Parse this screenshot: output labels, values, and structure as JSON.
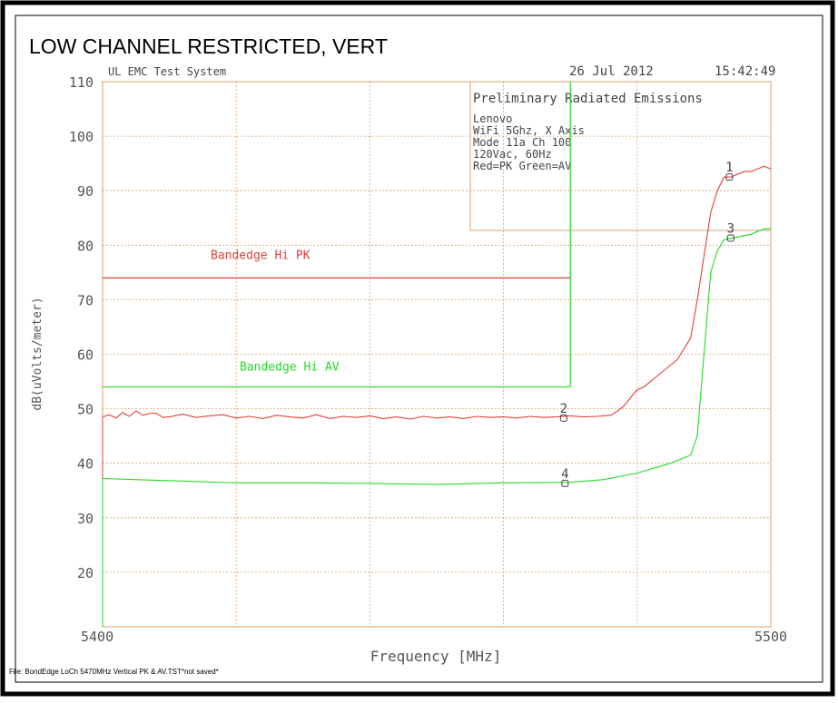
{
  "chart_data": {
    "type": "line",
    "title": "LOW CHANNEL RESTRICTED, VERT",
    "header": {
      "system": "UL EMC Test System",
      "date": "26 Jul 2012",
      "time": "15:42:49"
    },
    "info_box": [
      "Preliminary Radiated Emissions",
      "Lenovo",
      "WiFi 5Ghz, X Axis",
      "Mode 11a Ch 100",
      "120Vac, 60Hz",
      "Red=PK Green=AV"
    ],
    "ylabel": "dB(uVolts/meter)",
    "xlabel": "Frequency [MHz]",
    "footer": "File: BondEdge LoCh 5470MHz Vertical PK & AV.TST*not saved*",
    "xlim": [
      5400,
      5500
    ],
    "ylim": [
      10,
      110
    ],
    "xticks": [
      5400,
      5500
    ],
    "xgrid": [
      5420,
      5440,
      5460,
      5480
    ],
    "yticks": [
      20,
      30,
      40,
      50,
      60,
      70,
      80,
      90,
      100,
      110
    ],
    "grid": true,
    "series": [
      {
        "name": "PK",
        "color": "#e0403a",
        "x": [
          5400,
          5401,
          5402,
          5403,
          5404,
          5405,
          5406,
          5407,
          5408,
          5409,
          5410,
          5412,
          5414,
          5416,
          5418,
          5420,
          5422,
          5424,
          5426,
          5428,
          5430,
          5432,
          5434,
          5436,
          5438,
          5440,
          5442,
          5444,
          5446,
          5448,
          5450,
          5452,
          5454,
          5456,
          5458,
          5460,
          5462,
          5464,
          5466,
          5468,
          5470,
          5472,
          5474,
          5476,
          5477,
          5478,
          5479,
          5480,
          5481,
          5482,
          5483,
          5484,
          5485,
          5486,
          5487,
          5488,
          5489,
          5490,
          5491,
          5492,
          5493,
          5494,
          5495,
          5496,
          5497,
          5498,
          5499,
          5500
        ],
        "values": [
          48.5,
          48.9,
          48.3,
          49.3,
          48.6,
          49.6,
          48.8,
          49.1,
          49.2,
          48.4,
          48.5,
          49,
          48.4,
          48.7,
          48.9,
          48.3,
          48.6,
          48.2,
          48.8,
          48.5,
          48.3,
          48.9,
          48.2,
          48.6,
          48.4,
          48.7,
          48.2,
          48.5,
          48.1,
          48.6,
          48.3,
          48.5,
          48.2,
          48.6,
          48.4,
          48.5,
          48.3,
          48.6,
          48.4,
          48.5,
          48.7,
          48.5,
          48.6,
          48.8,
          49.5,
          50.5,
          52,
          53.5,
          54,
          55,
          56,
          57,
          58,
          59,
          61,
          63,
          70,
          78,
          86,
          90,
          92.5,
          92.5,
          93,
          93.5,
          93.5,
          94,
          94.5,
          94
        ]
      },
      {
        "name": "AV",
        "color": "#22dd22",
        "x": [
          5400,
          5410,
          5420,
          5430,
          5440,
          5450,
          5460,
          5470,
          5475,
          5480,
          5485,
          5488,
          5489,
          5490,
          5491,
          5492,
          5493,
          5495,
          5497,
          5499,
          5500
        ],
        "values": [
          37.2,
          36.8,
          36.4,
          36.4,
          36.3,
          36.1,
          36.4,
          36.5,
          37,
          38.2,
          40,
          41.5,
          45,
          60,
          75,
          79,
          81,
          81.5,
          82,
          83,
          83
        ]
      }
    ],
    "limits": [
      {
        "label": "Bandedge Hi PK",
        "color": "#e0403a",
        "value": 74,
        "x_end": 5470
      },
      {
        "label": "Bandedge Hi AV",
        "color": "#22dd22",
        "value": 54,
        "x_end": 5470
      }
    ],
    "markers": [
      {
        "label": "1",
        "x": 5493.8,
        "y": 92.5
      },
      {
        "label": "2",
        "x": 5469,
        "y": 48.3
      },
      {
        "label": "3",
        "x": 5494,
        "y": 81.3
      },
      {
        "label": "4",
        "x": 5469.2,
        "y": 36.3
      }
    ]
  }
}
